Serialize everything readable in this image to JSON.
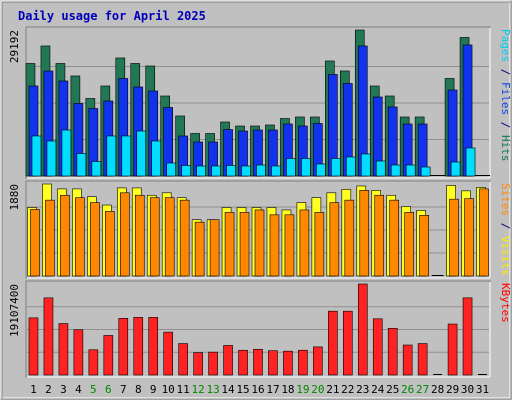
{
  "chart_data": {
    "type": "bar",
    "title": "Daily usage for April 2025",
    "categories": [
      "1",
      "2",
      "3",
      "4",
      "5",
      "6",
      "7",
      "8",
      "9",
      "10",
      "11",
      "12",
      "13",
      "14",
      "15",
      "16",
      "17",
      "18",
      "19",
      "20",
      "21",
      "22",
      "23",
      "24",
      "25",
      "26",
      "27",
      "28",
      "29",
      "30",
      "31"
    ],
    "weekend_days": [
      "5",
      "6",
      "12",
      "13",
      "19",
      "20",
      "26",
      "27"
    ],
    "panels": [
      {
        "id": "hits",
        "max_label": "29192",
        "ymax": 29192,
        "side_labels": [
          {
            "text": "Pages",
            "color": "#00ccee"
          },
          {
            "text": " / ",
            "color": "#000080"
          },
          {
            "text": "Files",
            "color": "#1144dd"
          },
          {
            "text": " / ",
            "color": "#000080"
          },
          {
            "text": "Hits",
            "color": "#117755"
          }
        ],
        "series": [
          {
            "name": "Hits",
            "color": "#227755",
            "values": [
              22500,
              26000,
              22500,
              20000,
              15500,
              18000,
              23600,
              22500,
              22000,
              16000,
              12000,
              8500,
              8500,
              10800,
              10000,
              10000,
              10200,
              11500,
              11800,
              11800,
              23000,
              21000,
              29192,
              18000,
              16000,
              11800,
              11800,
              0,
              19500,
              27700,
              0
            ]
          },
          {
            "name": "Files",
            "color": "#1133ee",
            "values": [
              18000,
              21000,
              19000,
              14500,
              13500,
              15000,
              19500,
              17800,
              17000,
              13700,
              8000,
              6800,
              6800,
              9300,
              9000,
              9200,
              9200,
              10400,
              10000,
              10500,
              20300,
              18500,
              26000,
              15800,
              13800,
              10400,
              10400,
              0,
              17200,
              26200,
              0
            ]
          },
          {
            "name": "Pages",
            "color": "#00ddff",
            "values": [
              8000,
              7000,
              9200,
              4500,
              2900,
              8000,
              8000,
              9000,
              7000,
              2600,
              2100,
              2000,
              2000,
              2100,
              2000,
              2200,
              2000,
              3500,
              3500,
              2400,
              3500,
              3800,
              4400,
              3000,
              2200,
              2200,
              1800,
              0,
              2800,
              5600,
              0
            ]
          }
        ]
      },
      {
        "id": "visits",
        "max_label": "1880",
        "ymax": 1880,
        "side_labels": [
          {
            "text": "Sites",
            "color": "#ff8800"
          },
          {
            "text": " / ",
            "color": "#000080"
          },
          {
            "text": "Visits",
            "color": "#ffee00"
          }
        ],
        "series": [
          {
            "name": "Visits",
            "color": "#ffff22",
            "values": [
              1400,
              1880,
              1780,
              1780,
              1620,
              1450,
              1800,
              1800,
              1650,
              1700,
              1600,
              1150,
              1150,
              1400,
              1400,
              1400,
              1400,
              1350,
              1500,
              1600,
              1700,
              1770,
              1840,
              1750,
              1650,
              1420,
              1340,
              0,
              1850,
              1740,
              1810
            ]
          },
          {
            "name": "Sites",
            "color": "#ff8800",
            "values": [
              1360,
              1550,
              1650,
              1600,
              1500,
              1320,
              1700,
              1650,
              1600,
              1600,
              1550,
              1100,
              1150,
              1300,
              1300,
              1350,
              1250,
              1250,
              1350,
              1300,
              1500,
              1550,
              1750,
              1650,
              1550,
              1300,
              1240,
              0,
              1570,
              1580,
              1780
            ]
          }
        ]
      },
      {
        "id": "kbytes",
        "max_label": "19107400",
        "ymax": 19107400,
        "side_labels": [
          {
            "text": "KBytes",
            "color": "#ff0000"
          }
        ],
        "series": [
          {
            "name": "KBytes",
            "color": "#ff2222",
            "values": [
              12000000,
              16200000,
              10800000,
              9500000,
              5300000,
              8300000,
              11900000,
              12100000,
              12100000,
              9000000,
              6600000,
              4700000,
              4800000,
              6200000,
              5200000,
              5400000,
              5100000,
              5000000,
              5200000,
              5900000,
              13400000,
              13400000,
              19107400,
              11800000,
              9800000,
              6300000,
              6600000,
              0,
              10700000,
              16200000,
              0
            ]
          }
        ]
      }
    ]
  }
}
